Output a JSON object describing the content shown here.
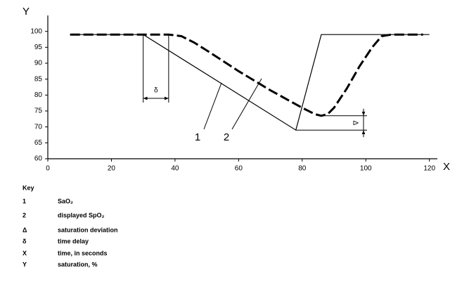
{
  "chart_data": {
    "type": "line",
    "x_label": "X",
    "y_label": "Y",
    "xlim": [
      0,
      122.5
    ],
    "ylim": [
      60,
      105
    ],
    "xticks": [
      0,
      20,
      40,
      60,
      80,
      100,
      120
    ],
    "yticks": [
      60,
      65,
      70,
      75,
      80,
      85,
      90,
      95,
      100
    ],
    "series": [
      {
        "name": "1",
        "color": "#000000",
        "x": [
          7,
          30,
          78,
          86,
          120
        ],
        "values": [
          99,
          99,
          69,
          99,
          99
        ]
      },
      {
        "name": "2",
        "color": "#000000",
        "x": [
          7,
          38,
          42,
          46,
          50,
          60,
          70,
          80,
          84,
          86,
          88,
          90,
          94,
          98,
          102,
          105,
          108,
          118
        ],
        "values": [
          99,
          99,
          98.5,
          96.5,
          94,
          87.5,
          81.5,
          76,
          74,
          73.5,
          74,
          76,
          82,
          89,
          95,
          98.5,
          99,
          99
        ]
      }
    ],
    "annotations": {
      "time_delay": "δ",
      "deviation": "Δ"
    }
  },
  "key": {
    "title": "Key",
    "items": [
      {
        "symbol": "1",
        "label": "SaO₂"
      },
      {
        "symbol": "2",
        "label": "displayed SpO₂"
      },
      {
        "symbol": "Δ",
        "label": "saturation deviation"
      },
      {
        "symbol": "δ",
        "label": "time delay"
      },
      {
        "symbol": "X",
        "label": "time, in seconds"
      },
      {
        "symbol": "Y",
        "label": "saturation, %"
      }
    ]
  }
}
